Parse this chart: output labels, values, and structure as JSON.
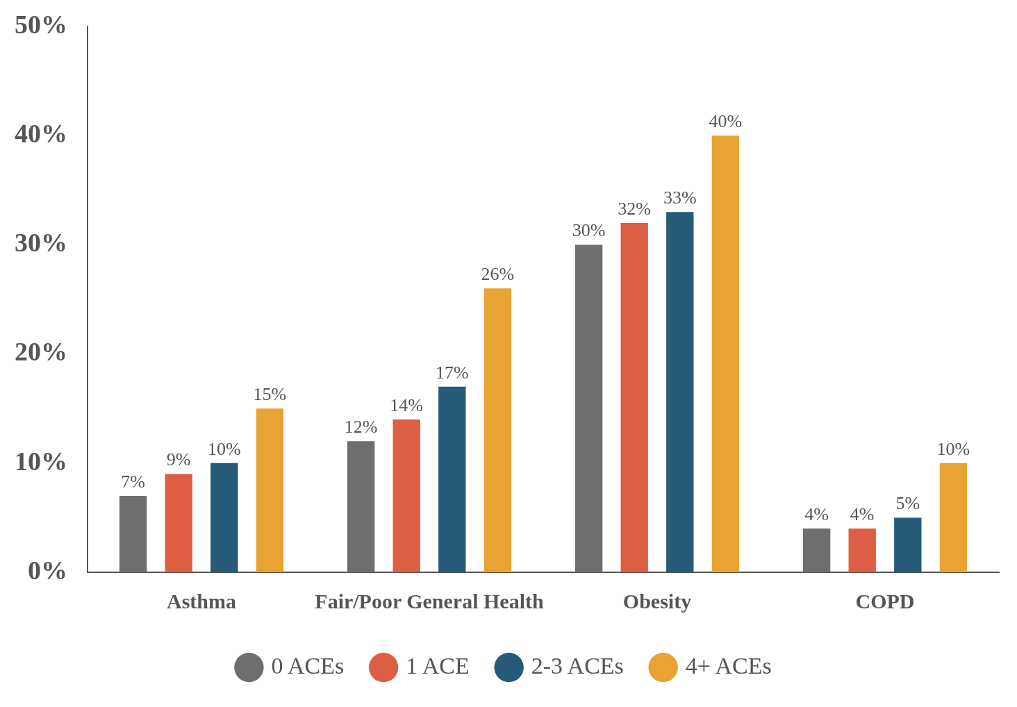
{
  "chart_data": {
    "type": "bar",
    "categories": [
      "Asthma",
      "Fair/Poor General Health",
      "Obesity",
      "COPD"
    ],
    "series": [
      {
        "name": "0 ACEs",
        "color": "#6e6e6e",
        "values": [
          7,
          12,
          30,
          4
        ],
        "value_labels": [
          "7%",
          "12%",
          "30%",
          "4%"
        ]
      },
      {
        "name": "1 ACE",
        "color": "#dc5f44",
        "values": [
          9,
          14,
          32,
          4
        ],
        "value_labels": [
          "9%",
          "14%",
          "32%",
          "4%"
        ]
      },
      {
        "name": "2-3 ACEs",
        "color": "#255a78",
        "values": [
          10,
          17,
          33,
          5
        ],
        "value_labels": [
          "10%",
          "17%",
          "33%",
          "5%"
        ]
      },
      {
        "name": "4+ ACEs",
        "color": "#e8a332",
        "values": [
          15,
          26,
          40,
          10
        ],
        "value_labels": [
          "15%",
          "26%",
          "40%",
          "10%"
        ]
      }
    ],
    "ylim": [
      0,
      50
    ],
    "yticks": [
      {
        "value": 0,
        "label": "0%"
      },
      {
        "value": 10,
        "label": "10%"
      },
      {
        "value": 20,
        "label": "20%"
      },
      {
        "value": 30,
        "label": "30%"
      },
      {
        "value": 40,
        "label": "40%"
      },
      {
        "value": 50,
        "label": "50%"
      }
    ],
    "grid": false,
    "legend": "bottom"
  }
}
